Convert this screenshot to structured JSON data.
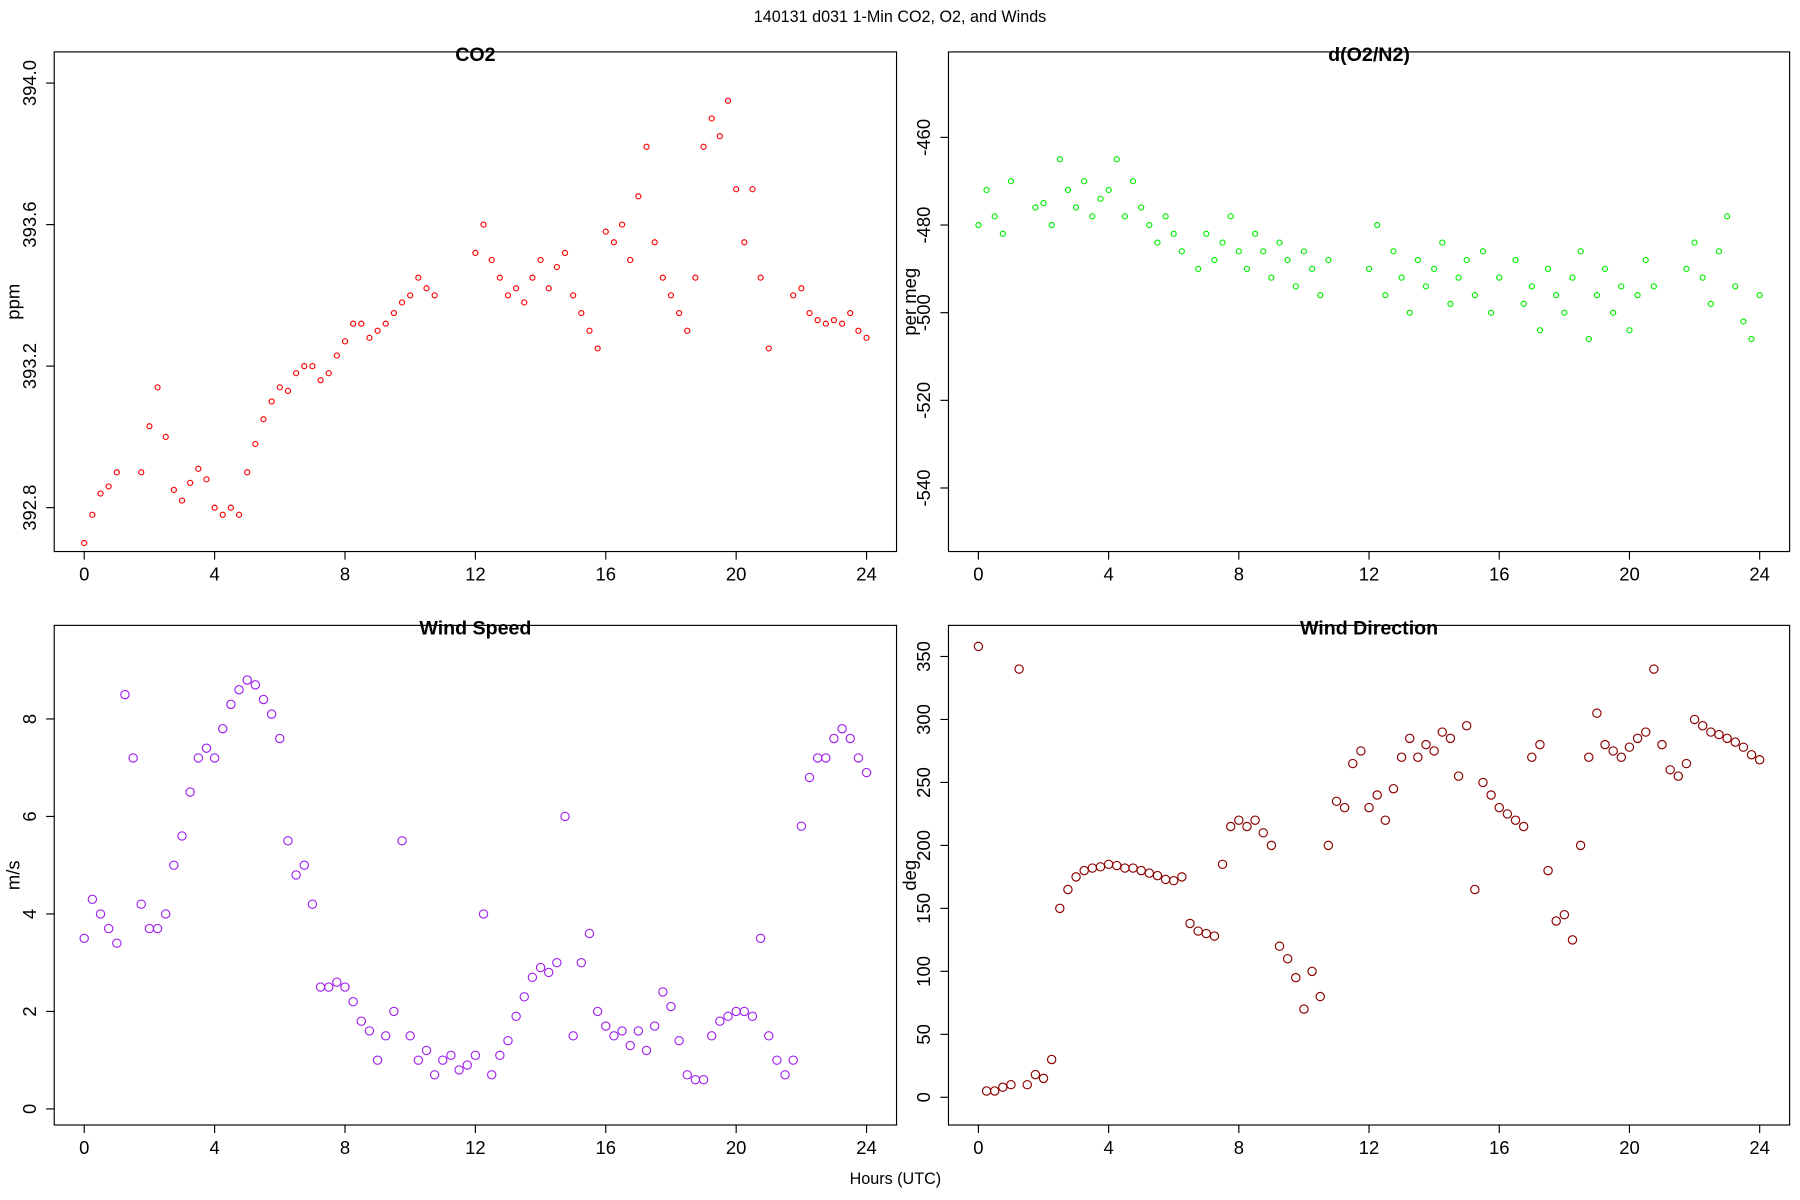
{
  "title": "140131   d031   1-Min CO2, O2, and Winds",
  "xlabel": "Hours (UTC)",
  "chart_data": [
    {
      "type": "scatter",
      "title": "CO2",
      "ylabel": "ppm",
      "color": "#ff0000",
      "xlim": [
        -0.92,
        24.92
      ],
      "xticks": [
        0,
        4,
        8,
        12,
        16,
        20,
        24
      ],
      "ylim": [
        392.676,
        394.088
      ],
      "yticks": [
        {
          "value": 392.8,
          "label": "392.8"
        },
        {
          "value": 393.2,
          "label": "393.2"
        },
        {
          "value": 393.6,
          "label": "393.6"
        },
        {
          "value": 394,
          "label": "394.0"
        }
      ],
      "x": [
        0,
        0.25,
        0.5,
        0.75,
        1,
        1.25,
        1.5,
        1.75,
        2,
        2.25,
        2.5,
        2.75,
        3,
        3.25,
        3.5,
        3.75,
        4,
        4.25,
        4.5,
        4.75,
        5,
        5.25,
        5.5,
        5.75,
        6,
        6.25,
        6.5,
        6.75,
        7,
        7.25,
        7.5,
        7.75,
        8,
        8.25,
        8.5,
        8.75,
        9,
        9.25,
        9.5,
        9.75,
        10,
        10.25,
        10.5,
        10.75,
        11,
        11.25,
        11.5,
        11.75,
        12,
        12.25,
        12.5,
        12.75,
        13,
        13.25,
        13.5,
        13.75,
        14,
        14.25,
        14.5,
        14.75,
        15,
        15.25,
        15.5,
        15.75,
        16,
        16.25,
        16.5,
        16.75,
        17,
        17.25,
        17.5,
        17.75,
        18,
        18.25,
        18.5,
        18.75,
        19,
        19.25,
        19.5,
        19.75,
        20,
        20.25,
        20.5,
        20.75,
        21,
        21.25,
        21.5,
        21.75,
        22,
        22.25,
        22.5,
        22.75,
        23,
        23.25,
        23.5,
        23.75,
        24
      ],
      "values": [
        392.7,
        392.78,
        392.84,
        392.86,
        392.9,
        null,
        null,
        392.9,
        393.03,
        393.14,
        393.0,
        392.85,
        392.82,
        392.87,
        392.91,
        392.88,
        392.8,
        392.78,
        392.8,
        392.78,
        392.9,
        392.98,
        393.05,
        393.1,
        393.14,
        393.13,
        393.18,
        393.2,
        393.2,
        393.16,
        393.18,
        393.23,
        393.27,
        393.32,
        393.32,
        393.28,
        393.3,
        393.32,
        393.35,
        393.38,
        393.4,
        393.45,
        393.42,
        393.4,
        null,
        null,
        null,
        null,
        393.52,
        393.6,
        393.5,
        393.45,
        393.4,
        393.42,
        393.38,
        393.45,
        393.5,
        393.42,
        393.48,
        393.52,
        393.4,
        393.35,
        393.3,
        393.25,
        393.58,
        393.55,
        393.6,
        393.5,
        393.68,
        393.82,
        393.55,
        393.45,
        393.4,
        393.35,
        393.3,
        393.45,
        393.82,
        393.9,
        393.85,
        393.95,
        393.7,
        393.55,
        393.7,
        393.45,
        393.25,
        null,
        null,
        393.4,
        393.42,
        393.35,
        393.33,
        393.32,
        393.33,
        393.32,
        393.35,
        393.3,
        393.28
      ]
    },
    {
      "type": "scatter",
      "title": "d(O2/N2)",
      "ylabel": "per meg",
      "color": "#00ee00",
      "xlim": [
        -0.92,
        24.92
      ],
      "xticks": [
        0,
        4,
        8,
        12,
        16,
        20,
        24
      ],
      "ylim": [
        -554.5,
        -440.5
      ],
      "yticks": [
        -540,
        -520,
        -500,
        -480,
        -460
      ],
      "x": [
        0,
        0.25,
        0.5,
        0.75,
        1,
        1.25,
        1.5,
        1.75,
        2,
        2.25,
        2.5,
        2.75,
        3,
        3.25,
        3.5,
        3.75,
        4,
        4.25,
        4.5,
        4.75,
        5,
        5.25,
        5.5,
        5.75,
        6,
        6.25,
        6.5,
        6.75,
        7,
        7.25,
        7.5,
        7.75,
        8,
        8.25,
        8.5,
        8.75,
        9,
        9.25,
        9.5,
        9.75,
        10,
        10.25,
        10.5,
        10.75,
        11,
        11.25,
        11.5,
        11.75,
        12,
        12.25,
        12.5,
        12.75,
        13,
        13.25,
        13.5,
        13.75,
        14,
        14.25,
        14.5,
        14.75,
        15,
        15.25,
        15.5,
        15.75,
        16,
        16.25,
        16.5,
        16.75,
        17,
        17.25,
        17.5,
        17.75,
        18,
        18.25,
        18.5,
        18.75,
        19,
        19.25,
        19.5,
        19.75,
        20,
        20.25,
        20.5,
        20.75,
        21,
        21.25,
        21.5,
        21.75,
        22,
        22.25,
        22.5,
        22.75,
        23,
        23.25,
        23.5,
        23.75,
        24
      ],
      "values": [
        -480,
        -472,
        -478,
        -482,
        -470,
        null,
        null,
        -476,
        -475,
        -480,
        -465,
        -472,
        -476,
        -470,
        -478,
        -474,
        -472,
        -465,
        -478,
        -470,
        -476,
        -480,
        -484,
        -478,
        -482,
        -486,
        null,
        -490,
        -482,
        -488,
        -484,
        -478,
        -486,
        -490,
        -482,
        -486,
        -492,
        -484,
        -488,
        -494,
        -486,
        -490,
        -496,
        -488,
        null,
        null,
        null,
        null,
        -490,
        -480,
        -496,
        -486,
        -492,
        -500,
        -488,
        -494,
        -490,
        -484,
        -498,
        -492,
        -488,
        -496,
        -486,
        -500,
        -492,
        null,
        -488,
        -498,
        -494,
        -504,
        -490,
        -496,
        -500,
        -492,
        -486,
        -506,
        -496,
        -490,
        -500,
        -494,
        -504,
        -496,
        -488,
        -494,
        null,
        null,
        null,
        -490,
        -484,
        -492,
        -498,
        -486,
        -478,
        -494,
        -502,
        -506,
        -496
      ]
    },
    {
      "type": "scatter",
      "title": "Wind Speed",
      "ylabel": "m/s",
      "color": "#a020f0",
      "xlim": [
        -0.92,
        24.92
      ],
      "xticks": [
        0,
        4,
        8,
        12,
        16,
        20,
        24
      ],
      "ylim": [
        -0.33,
        9.92
      ],
      "yticks": [
        0,
        2,
        4,
        6,
        8
      ],
      "x": [
        0,
        0.25,
        0.5,
        0.75,
        1,
        1.25,
        1.5,
        1.75,
        2,
        2.25,
        2.5,
        2.75,
        3,
        3.25,
        3.5,
        3.75,
        4,
        4.25,
        4.5,
        4.75,
        5,
        5.25,
        5.5,
        5.75,
        6,
        6.25,
        6.5,
        6.75,
        7,
        7.25,
        7.5,
        7.75,
        8,
        8.25,
        8.5,
        8.75,
        9,
        9.25,
        9.5,
        9.75,
        10,
        10.25,
        10.5,
        10.75,
        11,
        11.25,
        11.5,
        11.75,
        12,
        12.25,
        12.5,
        12.75,
        13,
        13.25,
        13.5,
        13.75,
        14,
        14.25,
        14.5,
        14.75,
        15,
        15.25,
        15.5,
        15.75,
        16,
        16.25,
        16.5,
        16.75,
        17,
        17.25,
        17.5,
        17.75,
        18,
        18.25,
        18.5,
        18.75,
        19,
        19.25,
        19.5,
        19.75,
        20,
        20.25,
        20.5,
        20.75,
        21,
        21.25,
        21.5,
        21.75,
        22,
        22.25,
        22.5,
        22.75,
        23,
        23.25,
        23.5,
        23.75,
        24
      ],
      "values": [
        3.5,
        4.3,
        4.0,
        3.7,
        3.4,
        8.5,
        7.2,
        4.2,
        3.7,
        3.7,
        4.0,
        5.0,
        5.6,
        6.5,
        7.2,
        7.4,
        7.2,
        7.8,
        8.3,
        8.6,
        8.8,
        8.7,
        8.4,
        8.1,
        7.6,
        5.5,
        4.8,
        5.0,
        4.2,
        2.5,
        2.5,
        2.6,
        2.5,
        2.2,
        1.8,
        1.6,
        1.0,
        1.5,
        2.0,
        5.5,
        1.5,
        1.0,
        1.2,
        0.7,
        1.0,
        1.1,
        0.8,
        0.9,
        1.1,
        4.0,
        0.7,
        1.1,
        1.4,
        1.9,
        2.3,
        2.7,
        2.9,
        2.8,
        3.0,
        6.0,
        1.5,
        3.0,
        3.6,
        2.0,
        1.7,
        1.5,
        1.6,
        1.3,
        1.6,
        1.2,
        1.7,
        2.4,
        2.1,
        1.4,
        0.7,
        0.6,
        0.6,
        1.5,
        1.8,
        1.9,
        2.0,
        2.0,
        1.9,
        3.5,
        1.5,
        1.0,
        0.7,
        1.0,
        5.8,
        6.8,
        7.2,
        7.2,
        7.6,
        7.8,
        7.6,
        7.2,
        6.9
      ]
    },
    {
      "type": "scatter",
      "title": "Wind Direction",
      "ylabel": "deg",
      "color": "#8b0000",
      "xlim": [
        -0.92,
        24.92
      ],
      "xticks": [
        0,
        4,
        8,
        12,
        16,
        20,
        24
      ],
      "ylim": [
        -22,
        374.7
      ],
      "yticks": [
        0,
        50,
        100,
        150,
        200,
        250,
        300,
        350
      ],
      "x": [
        0,
        0.25,
        0.5,
        0.75,
        1,
        1.25,
        1.5,
        1.75,
        2,
        2.25,
        2.5,
        2.75,
        3,
        3.25,
        3.5,
        3.75,
        4,
        4.25,
        4.5,
        4.75,
        5,
        5.25,
        5.5,
        5.75,
        6,
        6.25,
        6.5,
        6.75,
        7,
        7.25,
        7.5,
        7.75,
        8,
        8.25,
        8.5,
        8.75,
        9,
        9.25,
        9.5,
        9.75,
        10,
        10.25,
        10.5,
        10.75,
        11,
        11.25,
        11.5,
        11.75,
        12,
        12.25,
        12.5,
        12.75,
        13,
        13.25,
        13.5,
        13.75,
        14,
        14.25,
        14.5,
        14.75,
        15,
        15.25,
        15.5,
        15.75,
        16,
        16.25,
        16.5,
        16.75,
        17,
        17.25,
        17.5,
        17.75,
        18,
        18.25,
        18.5,
        18.75,
        19,
        19.25,
        19.5,
        19.75,
        20,
        20.25,
        20.5,
        20.75,
        21,
        21.25,
        21.5,
        21.75,
        22,
        22.25,
        22.5,
        22.75,
        23,
        23.25,
        23.5,
        23.75,
        24
      ],
      "values": [
        358,
        5,
        5,
        8,
        10,
        340,
        10,
        18,
        15,
        30,
        150,
        165,
        175,
        180,
        182,
        183,
        185,
        184,
        182,
        182,
        180,
        178,
        176,
        173,
        172,
        175,
        138,
        132,
        130,
        128,
        185,
        215,
        220,
        215,
        220,
        210,
        200,
        120,
        110,
        95,
        70,
        100,
        80,
        200,
        235,
        230,
        265,
        275,
        230,
        240,
        220,
        245,
        270,
        285,
        270,
        280,
        275,
        290,
        285,
        255,
        295,
        165,
        250,
        240,
        230,
        225,
        220,
        215,
        270,
        280,
        180,
        140,
        145,
        125,
        200,
        270,
        305,
        280,
        275,
        270,
        278,
        285,
        290,
        340,
        280,
        260,
        255,
        265,
        300,
        295,
        290,
        288,
        285,
        282,
        278,
        272,
        268
      ]
    }
  ]
}
